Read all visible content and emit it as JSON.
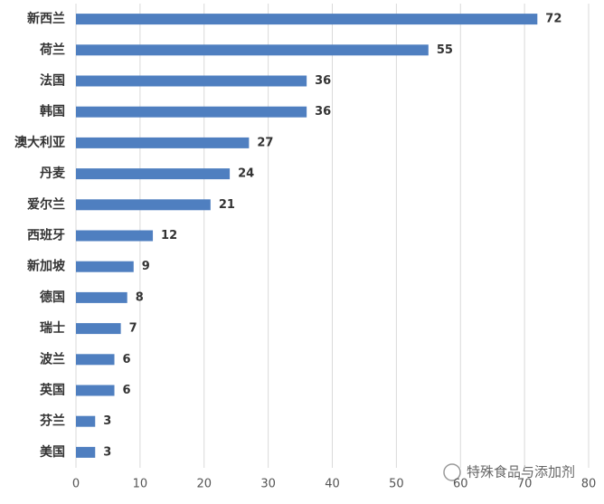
{
  "chart_data": {
    "type": "bar",
    "categories": [
      "新西兰",
      "荷兰",
      "法国",
      "韩国",
      "澳大利亚",
      "丹麦",
      "爱尔兰",
      "西班牙",
      "新加坡",
      "德国",
      "瑞士",
      "波兰",
      "英国",
      "芬兰",
      "美国"
    ],
    "values": [
      72,
      55,
      36,
      36,
      27,
      24,
      21,
      12,
      9,
      8,
      7,
      6,
      6,
      3,
      3
    ],
    "color": "#4f7fc0",
    "xlim": [
      0,
      80
    ],
    "xticks": [
      0,
      10,
      20,
      30,
      40,
      50,
      60,
      70,
      80
    ],
    "grid": true
  },
  "watermark": "特殊食品与添加剂"
}
